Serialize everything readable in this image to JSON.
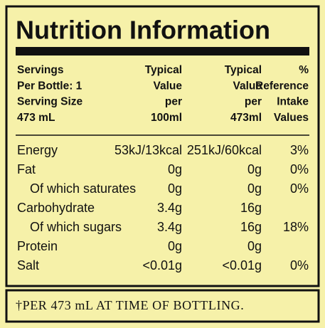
{
  "header": {
    "title": "Nutrition Information"
  },
  "table": {
    "columns": [
      [
        "Servings",
        "Per Bottle: 1",
        "Serving Size",
        "473 mL"
      ],
      [
        "Typical",
        "Value",
        "per",
        "100ml"
      ],
      [
        "Typical",
        "Value",
        "per",
        "473ml"
      ],
      [
        "%",
        "Reference",
        "Intake",
        "Values"
      ]
    ],
    "rows": [
      {
        "cells": [
          "Energy",
          "53kJ/13kcal",
          "251kJ/60kcal",
          "3%"
        ]
      },
      {
        "cells": [
          "Fat",
          "0g",
          "0g",
          "0%"
        ]
      },
      {
        "cells": [
          "Of which saturates",
          "0g",
          "0g",
          "0%"
        ],
        "indent": true
      },
      {
        "cells": [
          "Carbohydrate",
          "3.4g",
          "16g",
          null
        ]
      },
      {
        "cells": [
          "Of which sugars",
          "3.4g",
          "16g",
          "18%"
        ],
        "indent": true
      },
      {
        "cells": [
          "Protein",
          "0g",
          "0g",
          null
        ]
      },
      {
        "cells": [
          "Salt",
          "<0.01g",
          "<0.01g",
          "0%"
        ]
      }
    ]
  },
  "footer": {
    "note": "†PER 473 mL AT TIME OF BOTTLING."
  }
}
